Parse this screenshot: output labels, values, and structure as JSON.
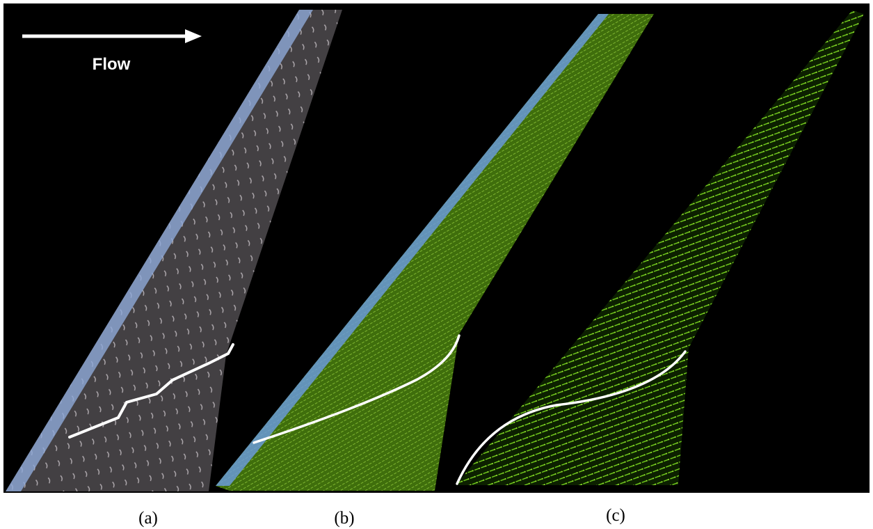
{
  "figure": {
    "arrow_label": "Flow",
    "panels": [
      {
        "label": "(a)"
      },
      {
        "label": "(b)"
      },
      {
        "label": "(c)"
      }
    ]
  }
}
